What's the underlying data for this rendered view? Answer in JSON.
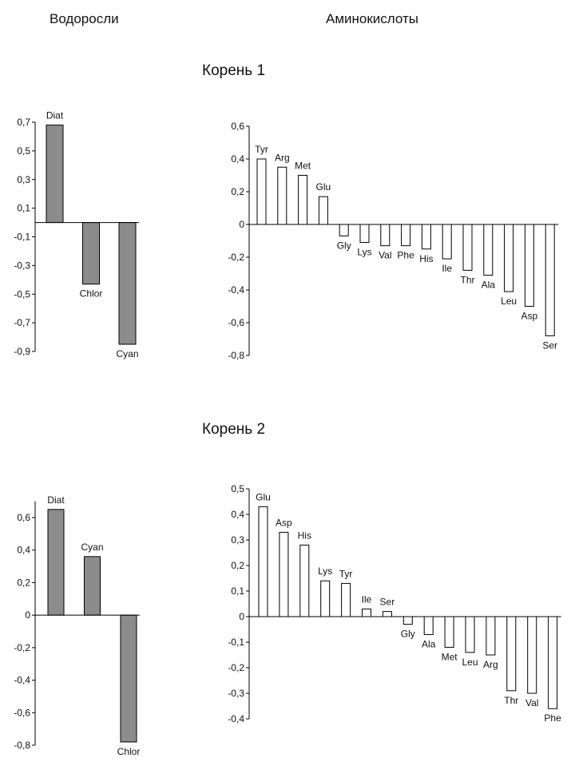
{
  "headers": {
    "algae": "Водоросли",
    "amino": "Аминокислоты"
  },
  "sections": [
    {
      "title": "Корень 1"
    },
    {
      "title": "Корень 2"
    }
  ],
  "colors": {
    "algae_bar": "#8c8c8c",
    "amino_bar": "#ffffff",
    "outline": "#000000"
  },
  "chart_data": [
    {
      "type": "bar",
      "title": "",
      "xlabel": "",
      "ylabel": "",
      "categories": [
        "Diat",
        "Chlor",
        "Cyan"
      ],
      "values": [
        0.68,
        -0.43,
        -0.85
      ],
      "ylim": [
        -0.9,
        0.7
      ],
      "ticks": [
        0.7,
        0.5,
        0.3,
        0.1,
        -0.1,
        -0.3,
        -0.5,
        -0.7,
        -0.9
      ],
      "tick_labels": [
        "0,7",
        "0,5",
        "0,3",
        "0,1",
        "-0,1",
        "-0,3",
        "-0,5",
        "-0,7",
        "-0,9"
      ]
    },
    {
      "type": "bar",
      "title": "",
      "xlabel": "",
      "ylabel": "",
      "categories": [
        "Tyr",
        "Arg",
        "Met",
        "Glu",
        "Gly",
        "Lys",
        "Val",
        "Phe",
        "His",
        "Ile",
        "Thr",
        "Ala",
        "Leu",
        "Asp",
        "Ser"
      ],
      "values": [
        0.4,
        0.35,
        0.3,
        0.17,
        -0.07,
        -0.11,
        -0.13,
        -0.13,
        -0.15,
        -0.21,
        -0.28,
        -0.31,
        -0.41,
        -0.5,
        -0.68
      ],
      "ylim": [
        -0.8,
        0.6
      ],
      "ticks": [
        0.6,
        0.4,
        0.2,
        0,
        -0.2,
        -0.4,
        -0.6,
        -0.8
      ],
      "tick_labels": [
        "0,6",
        "0,4",
        "0,2",
        "0",
        "-0,2",
        "-0,4",
        "-0,6",
        "-0,8"
      ]
    },
    {
      "type": "bar",
      "title": "",
      "xlabel": "",
      "ylabel": "",
      "categories": [
        "Diat",
        "Cyan",
        "Chlor"
      ],
      "values": [
        0.65,
        0.36,
        -0.78
      ],
      "ylim": [
        -0.8,
        0.7
      ],
      "ticks": [
        0.6,
        0.4,
        0.2,
        0,
        -0.2,
        -0.4,
        -0.6,
        -0.8
      ],
      "tick_labels": [
        "0,6",
        "0,4",
        "0,2",
        "0",
        "-0,2",
        "-0,4",
        "-0,6",
        "-0,8"
      ]
    },
    {
      "type": "bar",
      "title": "",
      "xlabel": "",
      "ylabel": "",
      "categories": [
        "Glu",
        "Asp",
        "His",
        "Lys",
        "Tyr",
        "Ile",
        "Ser",
        "Gly",
        "Ala",
        "Met",
        "Leu",
        "Arg",
        "Thr",
        "Val",
        "Phe"
      ],
      "values": [
        0.43,
        0.33,
        0.28,
        0.14,
        0.13,
        0.03,
        0.02,
        -0.03,
        -0.07,
        -0.12,
        -0.14,
        -0.15,
        -0.29,
        -0.3,
        -0.36
      ],
      "ylim": [
        -0.4,
        0.5
      ],
      "ticks": [
        0.5,
        0.4,
        0.3,
        0.2,
        0.1,
        0,
        -0.1,
        -0.2,
        -0.3,
        -0.4
      ],
      "tick_labels": [
        "0,5",
        "0,4",
        "0,3",
        "0,2",
        "0,1",
        "0",
        "-0,1",
        "-0,2",
        "-0,3",
        "-0,4"
      ]
    }
  ]
}
